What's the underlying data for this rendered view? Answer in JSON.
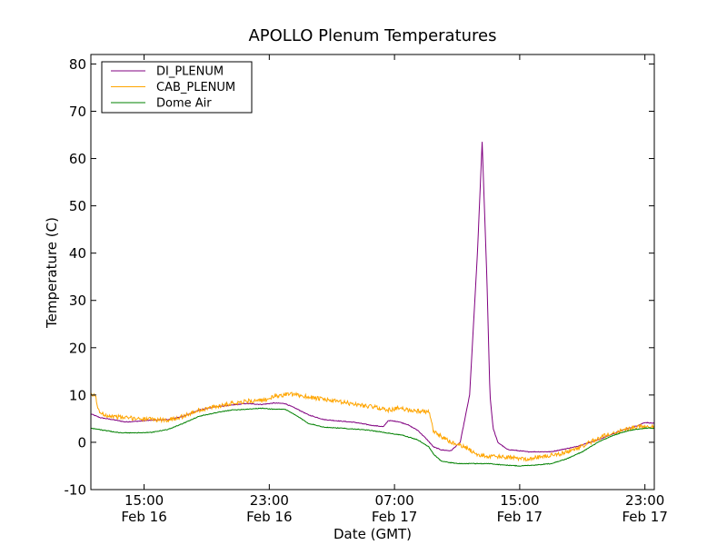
{
  "chart_data": {
    "type": "line",
    "title": "APOLLO Plenum Temperatures",
    "xlabel": "Date (GMT)",
    "ylabel": "Temperature (C)",
    "x_unit": "hours since Feb 16 00:00 GMT",
    "xlim": [
      11.6,
      47.6
    ],
    "ylim": [
      -10,
      82
    ],
    "y_ticks": [
      {
        "value": -10,
        "label": "-10"
      },
      {
        "value": 0,
        "label": "0"
      },
      {
        "value": 10,
        "label": "10"
      },
      {
        "value": 20,
        "label": "20"
      },
      {
        "value": 30,
        "label": "30"
      },
      {
        "value": 40,
        "label": "40"
      },
      {
        "value": 50,
        "label": "50"
      },
      {
        "value": 60,
        "label": "60"
      },
      {
        "value": 70,
        "label": "70"
      },
      {
        "value": 80,
        "label": "80"
      }
    ],
    "x_ticks": [
      {
        "value": 15,
        "time": "15:00",
        "date": "Feb 16"
      },
      {
        "value": 23,
        "time": "23:00",
        "date": "Feb 16"
      },
      {
        "value": 31,
        "time": "07:00",
        "date": "Feb 17"
      },
      {
        "value": 39,
        "time": "15:00",
        "date": "Feb 17"
      },
      {
        "value": 47,
        "time": "23:00",
        "date": "Feb 17"
      }
    ],
    "legend_position": "top-left",
    "series": [
      {
        "name": "DI_PLENUM",
        "color": "#800080",
        "noise": 0.15,
        "x": [
          11.6,
          12.2,
          13.0,
          13.8,
          14.8,
          15.6,
          16.5,
          17.5,
          18.5,
          19.5,
          20.5,
          21.5,
          22.5,
          23.3,
          24.0,
          24.8,
          25.5,
          26.5,
          27.5,
          28.5,
          29.5,
          30.3,
          30.6,
          31.2,
          31.8,
          32.5,
          33.1,
          33.5,
          34.0,
          34.6,
          35.2,
          35.8,
          36.3,
          36.6,
          36.9,
          37.1,
          37.3,
          37.6,
          38.2,
          39.5,
          41.0,
          42.5,
          44.0,
          45.5,
          46.5,
          47.0,
          47.6
        ],
        "values": [
          6.0,
          5.2,
          4.8,
          4.3,
          4.5,
          4.7,
          4.8,
          5.5,
          6.8,
          7.5,
          7.8,
          8.2,
          8.0,
          8.3,
          8.2,
          7.0,
          5.8,
          4.8,
          4.5,
          4.2,
          3.6,
          3.3,
          4.6,
          4.4,
          3.8,
          2.5,
          0.5,
          -1.0,
          -1.6,
          -1.8,
          0.0,
          10.0,
          40.0,
          63.5,
          35.0,
          10.0,
          3.0,
          0.0,
          -1.5,
          -2.0,
          -2.0,
          -1.0,
          0.5,
          2.5,
          3.5,
          4.2,
          4.0
        ]
      },
      {
        "name": "CAB_PLENUM",
        "color": "#ffa500",
        "noise": 0.9,
        "x": [
          11.6,
          11.9,
          12.1,
          12.5,
          13.0,
          13.8,
          14.8,
          15.6,
          16.5,
          17.5,
          18.5,
          19.5,
          20.5,
          21.5,
          22.5,
          22.9,
          23.5,
          24.2,
          25.0,
          26.0,
          27.0,
          28.0,
          29.0,
          30.0,
          30.6,
          31.2,
          32.0,
          32.6,
          33.2,
          33.5,
          34.0,
          34.5,
          35.0,
          35.5,
          36.0,
          36.5,
          37.0,
          37.5,
          38.5,
          39.5,
          40.5,
          41.5,
          42.5,
          43.5,
          44.5,
          45.5,
          46.5,
          47.6
        ],
        "values": [
          10.0,
          9.8,
          6.5,
          5.8,
          5.5,
          5.2,
          5.0,
          4.8,
          4.7,
          5.5,
          6.8,
          7.5,
          8.2,
          8.7,
          8.8,
          9.2,
          9.8,
          10.2,
          9.9,
          9.3,
          8.8,
          8.3,
          7.8,
          7.3,
          6.8,
          7.2,
          6.8,
          6.6,
          6.4,
          2.2,
          1.2,
          0.2,
          -0.5,
          -1.0,
          -2.0,
          -2.8,
          -3.0,
          -3.0,
          -3.3,
          -3.5,
          -3.0,
          -2.5,
          -1.5,
          0.0,
          1.5,
          2.5,
          3.3,
          3.5
        ]
      },
      {
        "name": "Dome Air",
        "color": "#008000",
        "noise": 0.15,
        "x": [
          11.6,
          12.5,
          13.5,
          14.5,
          15.5,
          16.5,
          17.5,
          18.5,
          19.5,
          20.5,
          21.5,
          22.5,
          23.3,
          24.0,
          24.8,
          25.5,
          26.5,
          27.5,
          28.5,
          29.5,
          30.5,
          31.5,
          32.5,
          33.2,
          33.5,
          34.0,
          35.0,
          36.0,
          37.0,
          38.0,
          39.0,
          40.0,
          41.0,
          42.0,
          43.0,
          44.0,
          45.0,
          46.0,
          47.0,
          47.6
        ],
        "values": [
          3.0,
          2.5,
          2.0,
          2.0,
          2.1,
          2.7,
          4.0,
          5.5,
          6.2,
          6.8,
          7.0,
          7.2,
          7.0,
          7.0,
          5.5,
          4.0,
          3.2,
          3.0,
          2.8,
          2.5,
          2.0,
          1.5,
          0.5,
          -1.0,
          -2.5,
          -4.0,
          -4.5,
          -4.5,
          -4.5,
          -4.8,
          -5.0,
          -4.8,
          -4.5,
          -3.5,
          -2.0,
          0.0,
          1.5,
          2.5,
          3.0,
          3.0
        ]
      }
    ]
  }
}
